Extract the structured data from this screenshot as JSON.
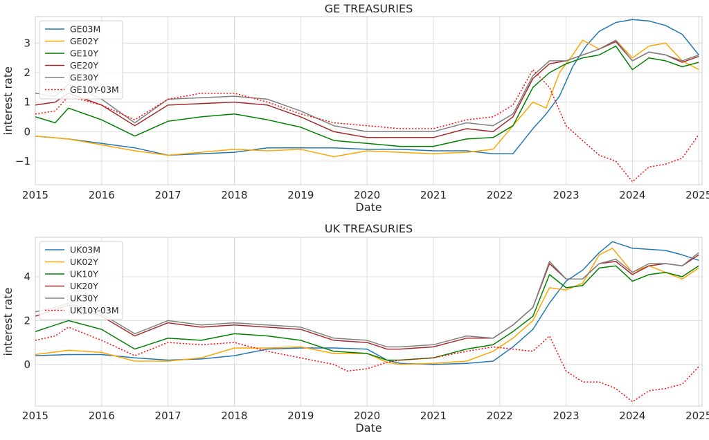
{
  "chart_data": [
    {
      "type": "line",
      "title": "GE TREASURIES",
      "xlabel": "Date",
      "ylabel": "interest rate",
      "xlim": [
        2015.0,
        2025.05
      ],
      "ylim": [
        -1.8,
        3.9
      ],
      "x_ticks": [
        2015,
        2016,
        2017,
        2018,
        2019,
        2020,
        2021,
        2022,
        2023,
        2024,
        2025
      ],
      "y_ticks": [
        -1,
        0,
        1,
        2,
        3
      ],
      "grid": true,
      "legend_position": "top-left",
      "series": [
        {
          "name": "GE03M",
          "color": "#1f77b4",
          "dash": "solid",
          "x": [
            2015,
            2015.5,
            2016,
            2016.5,
            2017,
            2017.5,
            2018,
            2018.5,
            2019,
            2019.5,
            2020,
            2020.5,
            2021,
            2021.5,
            2021.9,
            2022.2,
            2022.5,
            2022.7,
            2022.9,
            2023.1,
            2023.3,
            2023.5,
            2023.75,
            2024,
            2024.25,
            2024.5,
            2024.75,
            2025
          ],
          "y": [
            -0.15,
            -0.25,
            -0.4,
            -0.55,
            -0.8,
            -0.75,
            -0.7,
            -0.55,
            -0.55,
            -0.55,
            -0.6,
            -0.6,
            -0.65,
            -0.65,
            -0.75,
            -0.75,
            0.1,
            0.6,
            1.2,
            2.2,
            2.9,
            3.4,
            3.7,
            3.8,
            3.75,
            3.6,
            3.3,
            2.6
          ]
        },
        {
          "name": "GE02Y",
          "color": "#ffa500",
          "dash": "solid",
          "x": [
            2015,
            2015.5,
            2016,
            2016.5,
            2017,
            2017.5,
            2018,
            2018.5,
            2019,
            2019.5,
            2020,
            2020.5,
            2021,
            2021.5,
            2021.9,
            2022.2,
            2022.5,
            2022.7,
            2022.9,
            2023.1,
            2023.25,
            2023.5,
            2023.75,
            2024,
            2024.25,
            2024.5,
            2024.75,
            2025
          ],
          "y": [
            -0.15,
            -0.25,
            -0.45,
            -0.65,
            -0.8,
            -0.7,
            -0.6,
            -0.65,
            -0.6,
            -0.85,
            -0.65,
            -0.7,
            -0.75,
            -0.7,
            -0.6,
            0.2,
            1.0,
            0.8,
            2.0,
            2.6,
            3.1,
            2.8,
            3.1,
            2.5,
            2.9,
            3.0,
            2.4,
            2.1
          ]
        },
        {
          "name": "GE10Y",
          "color": "#008000",
          "dash": "solid",
          "x": [
            2015,
            2015.3,
            2015.5,
            2016,
            2016.5,
            2017,
            2017.5,
            2018,
            2018.5,
            2019,
            2019.5,
            2020,
            2020.5,
            2021,
            2021.5,
            2021.9,
            2022.2,
            2022.5,
            2022.75,
            2023,
            2023.25,
            2023.5,
            2023.75,
            2024,
            2024.25,
            2024.5,
            2024.75,
            2025
          ],
          "y": [
            0.5,
            0.3,
            0.8,
            0.4,
            -0.15,
            0.35,
            0.5,
            0.6,
            0.4,
            0.15,
            -0.3,
            -0.4,
            -0.5,
            -0.5,
            -0.25,
            -0.2,
            0.2,
            1.5,
            2.0,
            2.3,
            2.5,
            2.6,
            2.9,
            2.1,
            2.5,
            2.4,
            2.2,
            2.35
          ]
        },
        {
          "name": "GE20Y",
          "color": "#a52a2a",
          "dash": "solid",
          "x": [
            2015,
            2015.3,
            2015.5,
            2016,
            2016.5,
            2017,
            2017.5,
            2018,
            2018.5,
            2019,
            2019.5,
            2020,
            2020.5,
            2021,
            2021.5,
            2021.9,
            2022.2,
            2022.5,
            2022.75,
            2023,
            2023.25,
            2023.5,
            2023.75,
            2024,
            2024.25,
            2024.5,
            2024.75,
            2025
          ],
          "y": [
            0.9,
            1.0,
            1.3,
            0.9,
            0.2,
            0.9,
            0.95,
            1.0,
            0.9,
            0.5,
            0.0,
            -0.2,
            -0.2,
            -0.2,
            0.1,
            0.0,
            0.5,
            1.8,
            2.3,
            2.4,
            2.6,
            2.8,
            3.05,
            2.4,
            2.7,
            2.6,
            2.35,
            2.55
          ]
        },
        {
          "name": "GE30Y",
          "color": "#808080",
          "dash": "solid",
          "x": [
            2015,
            2015.3,
            2015.5,
            2016,
            2016.5,
            2017,
            2017.5,
            2018,
            2018.5,
            2019,
            2019.5,
            2020,
            2020.5,
            2021,
            2021.5,
            2021.9,
            2022.2,
            2022.5,
            2022.75,
            2023,
            2023.25,
            2023.5,
            2023.75,
            2024,
            2024.25,
            2024.5,
            2024.75,
            2025
          ],
          "y": [
            1.3,
            1.2,
            1.6,
            1.1,
            0.3,
            1.1,
            1.15,
            1.2,
            1.1,
            0.7,
            0.2,
            0.0,
            0.0,
            0.0,
            0.3,
            0.2,
            0.6,
            1.9,
            2.4,
            2.4,
            2.6,
            2.8,
            3.1,
            2.4,
            2.7,
            2.6,
            2.4,
            2.6
          ]
        },
        {
          "name": "GE10Y-03M",
          "color": "#ff0000",
          "dash": "dotted",
          "x": [
            2015,
            2015.3,
            2015.5,
            2016,
            2016.5,
            2017,
            2017.5,
            2018,
            2018.5,
            2019,
            2019.5,
            2020,
            2020.5,
            2021,
            2021.5,
            2021.9,
            2022.2,
            2022.5,
            2022.75,
            2023,
            2023.25,
            2023.5,
            2023.75,
            2024,
            2024.25,
            2024.5,
            2024.75,
            2025
          ],
          "y": [
            0.6,
            0.7,
            1.2,
            0.9,
            0.4,
            1.1,
            1.3,
            1.3,
            1.0,
            0.6,
            0.3,
            0.2,
            0.1,
            0.1,
            0.4,
            0.5,
            0.9,
            2.1,
            1.5,
            0.2,
            -0.3,
            -0.8,
            -1.0,
            -1.7,
            -1.2,
            -1.1,
            -0.9,
            -0.1
          ]
        }
      ]
    },
    {
      "type": "line",
      "title": "UK TREASURIES",
      "xlabel": "Date",
      "ylabel": "interest rate",
      "xlim": [
        2015.0,
        2025.05
      ],
      "ylim": [
        -1.9,
        5.8
      ],
      "x_ticks": [
        2015,
        2016,
        2017,
        2018,
        2019,
        2020,
        2021,
        2022,
        2023,
        2024,
        2025
      ],
      "y_ticks": [
        0,
        2,
        4
      ],
      "grid": true,
      "legend_position": "top-left",
      "series": [
        {
          "name": "UK03M",
          "color": "#1f77b4",
          "dash": "solid",
          "x": [
            2015,
            2015.5,
            2016,
            2016.5,
            2017,
            2017.5,
            2018,
            2018.5,
            2019,
            2019.5,
            2020,
            2020.3,
            2020.5,
            2021,
            2021.5,
            2021.9,
            2022.2,
            2022.5,
            2022.75,
            2023,
            2023.25,
            2023.5,
            2023.7,
            2024,
            2024.25,
            2024.5,
            2024.75,
            2025
          ],
          "y": [
            0.4,
            0.45,
            0.45,
            0.3,
            0.2,
            0.25,
            0.4,
            0.7,
            0.75,
            0.75,
            0.7,
            0.2,
            0.05,
            0.0,
            0.05,
            0.15,
            0.8,
            1.6,
            2.8,
            3.8,
            4.3,
            5.1,
            5.6,
            5.3,
            5.25,
            5.2,
            5.0,
            4.75
          ]
        },
        {
          "name": "UK02Y",
          "color": "#ffa500",
          "dash": "solid",
          "x": [
            2015,
            2015.5,
            2016,
            2016.5,
            2017,
            2017.5,
            2018,
            2018.5,
            2019,
            2019.5,
            2020,
            2020.3,
            2020.5,
            2021,
            2021.5,
            2021.9,
            2022.2,
            2022.5,
            2022.75,
            2023,
            2023.25,
            2023.5,
            2023.7,
            2024,
            2024.25,
            2024.5,
            2024.75,
            2025
          ],
          "y": [
            0.45,
            0.65,
            0.55,
            0.15,
            0.15,
            0.3,
            0.75,
            0.75,
            0.8,
            0.5,
            0.5,
            0.1,
            0.0,
            0.05,
            0.15,
            0.6,
            1.2,
            2.0,
            3.5,
            3.4,
            3.7,
            5.0,
            5.3,
            4.2,
            4.5,
            4.2,
            3.9,
            4.4
          ]
        },
        {
          "name": "UK10Y",
          "color": "#008000",
          "dash": "solid",
          "x": [
            2015,
            2015.3,
            2015.5,
            2016,
            2016.5,
            2017,
            2017.5,
            2018,
            2018.5,
            2019,
            2019.5,
            2020,
            2020.3,
            2020.5,
            2021,
            2021.5,
            2021.9,
            2022.2,
            2022.5,
            2022.75,
            2023,
            2023.25,
            2023.5,
            2023.75,
            2024,
            2024.25,
            2024.5,
            2024.75,
            2025
          ],
          "y": [
            1.5,
            1.8,
            2.0,
            1.6,
            0.7,
            1.2,
            1.1,
            1.4,
            1.3,
            1.1,
            0.6,
            0.5,
            0.2,
            0.2,
            0.3,
            0.7,
            0.9,
            1.5,
            2.2,
            4.1,
            3.5,
            3.6,
            4.4,
            4.5,
            3.8,
            4.1,
            4.2,
            4.0,
            4.5
          ]
        },
        {
          "name": "UK20Y",
          "color": "#a52a2a",
          "dash": "solid",
          "x": [
            2015,
            2015.3,
            2015.5,
            2016,
            2016.5,
            2017,
            2017.5,
            2018,
            2018.5,
            2019,
            2019.5,
            2020,
            2020.3,
            2020.5,
            2021,
            2021.5,
            2021.9,
            2022.2,
            2022.5,
            2022.75,
            2023,
            2023.25,
            2023.5,
            2023.75,
            2024,
            2024.25,
            2024.5,
            2024.75,
            2025
          ],
          "y": [
            2.2,
            2.5,
            2.7,
            2.2,
            1.3,
            1.9,
            1.7,
            1.8,
            1.7,
            1.6,
            1.1,
            1.0,
            0.7,
            0.7,
            0.8,
            1.2,
            1.2,
            1.8,
            2.6,
            4.6,
            3.9,
            3.9,
            4.6,
            4.7,
            4.1,
            4.5,
            4.6,
            4.5,
            5.0
          ]
        },
        {
          "name": "UK30Y",
          "color": "#808080",
          "dash": "solid",
          "x": [
            2015,
            2015.3,
            2015.5,
            2016,
            2016.5,
            2017,
            2017.5,
            2018,
            2018.5,
            2019,
            2019.5,
            2020,
            2020.3,
            2020.5,
            2021,
            2021.5,
            2021.9,
            2022.2,
            2022.5,
            2022.75,
            2023,
            2023.25,
            2023.5,
            2023.75,
            2024,
            2024.25,
            2024.5,
            2024.75,
            2025
          ],
          "y": [
            2.4,
            2.6,
            2.8,
            2.3,
            1.4,
            2.0,
            1.8,
            1.9,
            1.8,
            1.7,
            1.2,
            1.1,
            0.8,
            0.8,
            0.9,
            1.3,
            1.2,
            1.8,
            2.6,
            4.7,
            3.9,
            3.9,
            4.6,
            4.8,
            4.2,
            4.6,
            4.6,
            4.5,
            5.1
          ]
        },
        {
          "name": "UK10Y-03M",
          "color": "#ff0000",
          "dash": "dotted",
          "x": [
            2015,
            2015.3,
            2015.5,
            2016,
            2016.5,
            2017,
            2017.5,
            2018,
            2018.5,
            2019,
            2019.5,
            2019.7,
            2020,
            2020.3,
            2020.5,
            2021,
            2021.5,
            2021.9,
            2022.2,
            2022.5,
            2022.75,
            2023,
            2023.25,
            2023.5,
            2023.75,
            2024,
            2024.25,
            2024.5,
            2024.75,
            2025
          ],
          "y": [
            1.1,
            1.3,
            1.7,
            1.1,
            0.4,
            1.0,
            0.9,
            1.0,
            0.6,
            0.3,
            0.0,
            -0.3,
            -0.2,
            0.1,
            0.2,
            0.3,
            0.6,
            0.8,
            0.7,
            0.6,
            1.3,
            -0.3,
            -0.8,
            -0.8,
            -1.1,
            -1.7,
            -1.2,
            -1.1,
            -0.9,
            -0.1
          ]
        }
      ]
    }
  ]
}
